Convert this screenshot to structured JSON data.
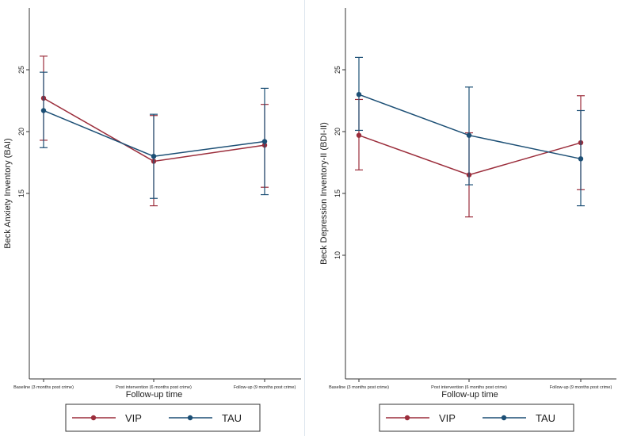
{
  "colors": {
    "vip": "#9b2d3b",
    "tau": "#1c4f75",
    "axis": "#333333",
    "divider": "#dde6ee",
    "legend_border": "#333333"
  },
  "chart_data": [
    {
      "type": "line",
      "title": "",
      "xlabel": "Follow-up time",
      "ylabel": "Beck Anxiety Inventory (BAI)",
      "categories": [
        "Baseline (3 months post crime)",
        "Post intervention (6 months post crime)",
        "Follow-up (9 months post crime)"
      ],
      "ylim": [
        0,
        30
      ],
      "yticks": [
        15,
        20,
        25
      ],
      "error_bars": true,
      "series": [
        {
          "name": "VIP",
          "values": [
            22.7,
            17.6,
            18.9
          ],
          "lower": [
            19.3,
            14.0,
            15.5
          ],
          "upper": [
            26.1,
            21.3,
            22.2
          ]
        },
        {
          "name": "TAU",
          "values": [
            21.7,
            18.0,
            19.2
          ],
          "lower": [
            18.7,
            14.6,
            14.9
          ],
          "upper": [
            24.8,
            21.4,
            23.5
          ]
        }
      ]
    },
    {
      "type": "line",
      "title": "",
      "xlabel": "Follow-up time",
      "ylabel": "Beck Depression Inventory-II (BDI-II)",
      "categories": [
        "Baseline (3 months post crime)",
        "Post intervention (6 months post crime)",
        "Follow-up (9 months post crime)"
      ],
      "ylim": [
        0,
        30
      ],
      "yticks": [
        10,
        15,
        20,
        25
      ],
      "error_bars": true,
      "series": [
        {
          "name": "VIP",
          "values": [
            19.7,
            16.5,
            19.1
          ],
          "lower": [
            16.9,
            13.1,
            15.3
          ],
          "upper": [
            22.6,
            19.9,
            22.9
          ]
        },
        {
          "name": "TAU",
          "values": [
            23.0,
            19.7,
            17.8
          ],
          "lower": [
            20.1,
            15.7,
            14.0
          ],
          "upper": [
            26.0,
            23.6,
            21.7
          ]
        }
      ]
    }
  ]
}
